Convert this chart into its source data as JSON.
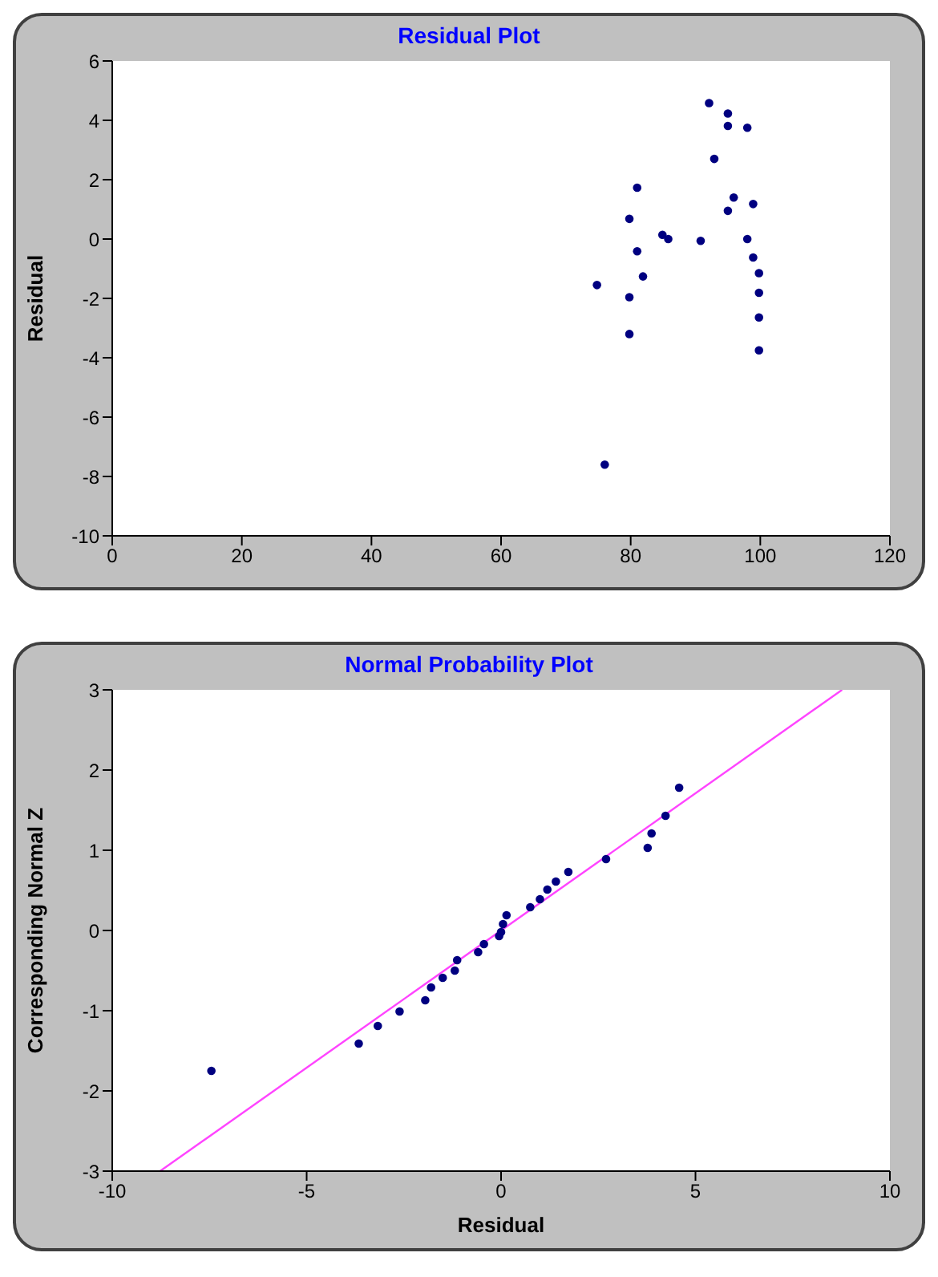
{
  "chart_data": [
    {
      "type": "scatter",
      "title": "Residual Plot",
      "ylabel": "Residual",
      "xlim": [
        0,
        120
      ],
      "xticks": [
        0,
        20,
        40,
        60,
        80,
        100,
        120
      ],
      "ylim": [
        -10,
        6
      ],
      "yticks": [
        -10,
        -8,
        -6,
        -4,
        -2,
        0,
        2,
        4,
        6
      ],
      "grid": false,
      "series": [
        {
          "marker": "circle",
          "color": "#000080",
          "x": [
            74.8,
            76,
            79.8,
            79.8,
            79.8,
            81,
            81,
            81.9,
            84.9,
            85.8,
            90.8,
            92.1,
            92.9,
            95,
            95,
            95,
            95.9,
            98,
            98,
            98.9,
            98.9,
            99.8,
            99.8,
            99.8,
            99.8
          ],
          "values": [
            -1.55,
            -7.6,
            0.68,
            -1.96,
            -3.2,
            1.73,
            -0.41,
            -1.26,
            0.14,
            0,
            -0.06,
            4.58,
            2.7,
            4.23,
            3.81,
            0.95,
            1.4,
            3.75,
            0,
            1.18,
            -0.62,
            -1.15,
            -1.81,
            -2.64,
            -3.75
          ]
        }
      ]
    },
    {
      "type": "scatter",
      "title": "Normal Probability Plot",
      "xlabel": "Residual",
      "ylabel": "Corresponding Normal Z",
      "xlim": [
        -10,
        10
      ],
      "xticks": [
        -10,
        -5,
        0,
        5,
        10
      ],
      "ylim": [
        -3,
        3
      ],
      "yticks": [
        -3,
        -2,
        -1,
        0,
        1,
        2,
        3
      ],
      "grid": false,
      "series": [
        {
          "marker": "circle",
          "color": "#000080",
          "x": [
            -7.45,
            -3.66,
            -3.17,
            -2.61,
            -1.95,
            -1.8,
            -1.5,
            -1.19,
            -1.13,
            -0.59,
            -0.44,
            -0.05,
            0,
            0.05,
            0.14,
            0.75,
            1,
            1.19,
            1.41,
            1.73,
            2.7,
            3.77,
            3.87,
            4.23,
            4.58
          ],
          "values": [
            -1.75,
            -1.41,
            -1.19,
            -1.01,
            -0.87,
            -0.71,
            -0.59,
            -0.5,
            -0.37,
            -0.27,
            -0.17,
            -0.07,
            -0.02,
            0.08,
            0.19,
            0.29,
            0.39,
            0.51,
            0.61,
            0.73,
            0.89,
            1.03,
            1.21,
            1.43,
            1.78
          ]
        },
        {
          "type": "line",
          "color": "#ff44ff",
          "x": [
            -8.77,
            8.77
          ],
          "values": [
            -3,
            3
          ]
        }
      ]
    }
  ]
}
